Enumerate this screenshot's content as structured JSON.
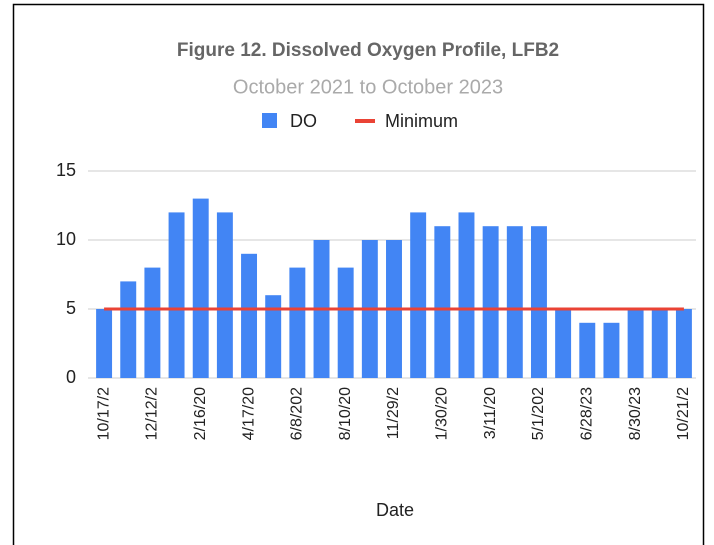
{
  "chart_data": {
    "type": "bar",
    "title": "Figure 12. Dissolved Oxygen Profile, LFB2",
    "subtitle": "October 2021 to October 2023",
    "x_label": "Date",
    "categories": [
      "10/17/2",
      null,
      "12/12/2",
      null,
      "2/16/20",
      null,
      "4/17/20",
      null,
      "6/8/202",
      null,
      "8/10/20",
      null,
      "11/29/2",
      null,
      "1/30/20",
      null,
      "3/11/20",
      null,
      "5/1/202",
      null,
      "6/28/23",
      null,
      "8/30/23",
      null,
      "10/21/2"
    ],
    "series": [
      {
        "name": "DO",
        "color": "#4285f4",
        "type": "bar",
        "values": [
          5,
          7,
          8,
          12,
          13,
          12,
          9,
          6,
          8,
          10,
          8,
          10,
          10,
          12,
          11,
          12,
          11,
          11,
          11,
          5,
          4,
          4,
          5,
          5,
          5
        ]
      },
      {
        "name": "Minimum",
        "color": "#ea4335",
        "type": "line",
        "values": [
          5,
          5,
          5,
          5,
          5,
          5,
          5,
          5,
          5,
          5,
          5,
          5,
          5,
          5,
          5,
          5,
          5,
          5,
          5,
          5,
          5,
          5,
          5,
          5,
          5
        ]
      }
    ],
    "ylim": [
      0,
      15
    ],
    "yticks": [
      0,
      5,
      10,
      15
    ],
    "grid": true,
    "legend": "top"
  }
}
